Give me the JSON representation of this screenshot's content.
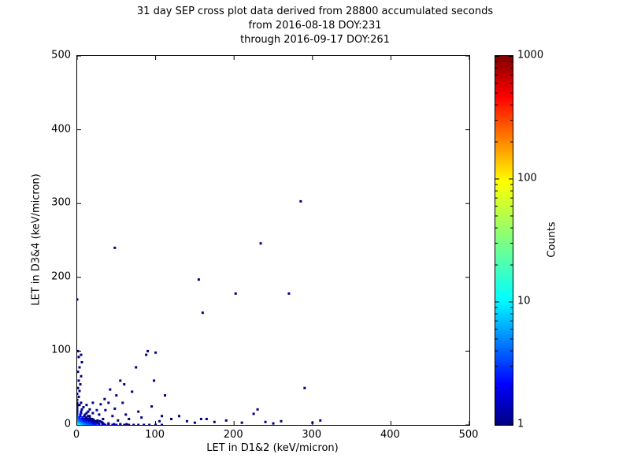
{
  "chart_data": {
    "type": "scatter",
    "title_lines": [
      "31 day SEP cross plot data derived from 28800 accumulated seconds",
      "from 2016-08-18 DOY:231",
      "through 2016-09-17 DOY:261"
    ],
    "xlabel": "LET in D1&2 (keV/micron)",
    "ylabel": "LET in D3&4 (keV/micron)",
    "xlim": [
      0,
      500
    ],
    "ylim": [
      0,
      500
    ],
    "xticks": [
      0,
      100,
      200,
      300,
      400,
      500
    ],
    "yticks": [
      0,
      100,
      200,
      300,
      400,
      500
    ],
    "grid": false,
    "legend": "none",
    "colorbar": {
      "label": "Counts",
      "scale": "log",
      "clim": [
        1,
        1000
      ],
      "ticks": [
        1,
        10,
        100,
        1000
      ],
      "colormap": "jet",
      "colormap_stops": [
        "#000080",
        "#0000ff",
        "#00ffff",
        "#80ff80",
        "#ffff00",
        "#ff0000",
        "#800000"
      ]
    },
    "points": [
      [
        0,
        0,
        30
      ],
      [
        1,
        0,
        26
      ],
      [
        2,
        0,
        22
      ],
      [
        3,
        0,
        18
      ],
      [
        4,
        0,
        15
      ],
      [
        5,
        0,
        13
      ],
      [
        6,
        0,
        11
      ],
      [
        8,
        0,
        9
      ],
      [
        10,
        0,
        8
      ],
      [
        12,
        0,
        7
      ],
      [
        15,
        0,
        6
      ],
      [
        18,
        0,
        5
      ],
      [
        21,
        0,
        4
      ],
      [
        24,
        0,
        4
      ],
      [
        28,
        0,
        3
      ],
      [
        32,
        0,
        3
      ],
      [
        36,
        0,
        2
      ],
      [
        40,
        0,
        2
      ],
      [
        45,
        0,
        2
      ],
      [
        50,
        0,
        2
      ],
      [
        55,
        0,
        1
      ],
      [
        60,
        0,
        1
      ],
      [
        66,
        0,
        1
      ],
      [
        72,
        0,
        1
      ],
      [
        78,
        0,
        1
      ],
      [
        85,
        0,
        1
      ],
      [
        92,
        0,
        1
      ],
      [
        100,
        0,
        1
      ],
      [
        108,
        0,
        1
      ],
      [
        0,
        1,
        22
      ],
      [
        1,
        1,
        20
      ],
      [
        2,
        1,
        16
      ],
      [
        3,
        1,
        13
      ],
      [
        5,
        1,
        11
      ],
      [
        7,
        1,
        9
      ],
      [
        9,
        1,
        7
      ],
      [
        12,
        1,
        6
      ],
      [
        15,
        1,
        5
      ],
      [
        19,
        1,
        4
      ],
      [
        23,
        1,
        3
      ],
      [
        28,
        1,
        2
      ],
      [
        34,
        1,
        2
      ],
      [
        40,
        1,
        1
      ],
      [
        47,
        1,
        1
      ],
      [
        55,
        1,
        1
      ],
      [
        63,
        1,
        1
      ],
      [
        0,
        2,
        16
      ],
      [
        1,
        2,
        14
      ],
      [
        2,
        2,
        12
      ],
      [
        4,
        2,
        10
      ],
      [
        6,
        2,
        8
      ],
      [
        8,
        2,
        6
      ],
      [
        11,
        2,
        5
      ],
      [
        14,
        2,
        4
      ],
      [
        18,
        2,
        3
      ],
      [
        22,
        2,
        2
      ],
      [
        27,
        2,
        2
      ],
      [
        33,
        2,
        1
      ],
      [
        40,
        2,
        1
      ],
      [
        0,
        3,
        13
      ],
      [
        1,
        3,
        11
      ],
      [
        3,
        3,
        9
      ],
      [
        5,
        3,
        7
      ],
      [
        7,
        3,
        6
      ],
      [
        10,
        3,
        5
      ],
      [
        13,
        3,
        4
      ],
      [
        17,
        3,
        3
      ],
      [
        21,
        3,
        2
      ],
      [
        26,
        3,
        1
      ],
      [
        32,
        3,
        1
      ],
      [
        0,
        4,
        11
      ],
      [
        2,
        4,
        9
      ],
      [
        4,
        4,
        7
      ],
      [
        6,
        4,
        6
      ],
      [
        9,
        4,
        4
      ],
      [
        12,
        4,
        3
      ],
      [
        16,
        4,
        3
      ],
      [
        20,
        4,
        2
      ],
      [
        25,
        4,
        1
      ],
      [
        31,
        4,
        1
      ],
      [
        0,
        5,
        9
      ],
      [
        2,
        5,
        7
      ],
      [
        4,
        5,
        6
      ],
      [
        7,
        5,
        4
      ],
      [
        10,
        5,
        3
      ],
      [
        14,
        5,
        3
      ],
      [
        18,
        5,
        2
      ],
      [
        23,
        5,
        1
      ],
      [
        29,
        5,
        1
      ],
      [
        0,
        6,
        8
      ],
      [
        2,
        6,
        6
      ],
      [
        5,
        6,
        4
      ],
      [
        8,
        6,
        3
      ],
      [
        11,
        6,
        3
      ],
      [
        15,
        6,
        2
      ],
      [
        20,
        6,
        1
      ],
      [
        26,
        6,
        1
      ],
      [
        0,
        7,
        7
      ],
      [
        2,
        7,
        5
      ],
      [
        5,
        7,
        4
      ],
      [
        8,
        7,
        3
      ],
      [
        12,
        7,
        2
      ],
      [
        16,
        7,
        1
      ],
      [
        21,
        7,
        1
      ],
      [
        0,
        8,
        6
      ],
      [
        3,
        8,
        4
      ],
      [
        6,
        8,
        3
      ],
      [
        10,
        8,
        2
      ],
      [
        14,
        8,
        1
      ],
      [
        19,
        8,
        1
      ],
      [
        0,
        9,
        5
      ],
      [
        3,
        9,
        4
      ],
      [
        7,
        9,
        2
      ],
      [
        11,
        9,
        1
      ],
      [
        16,
        9,
        1
      ],
      [
        0,
        10,
        5
      ],
      [
        3,
        10,
        3
      ],
      [
        7,
        10,
        2
      ],
      [
        12,
        10,
        1
      ],
      [
        0,
        12,
        4
      ],
      [
        4,
        12,
        2
      ],
      [
        9,
        12,
        1
      ],
      [
        14,
        12,
        1
      ],
      [
        0,
        14,
        3
      ],
      [
        4,
        14,
        2
      ],
      [
        10,
        14,
        1
      ],
      [
        0,
        16,
        3
      ],
      [
        5,
        16,
        2
      ],
      [
        12,
        16,
        1
      ],
      [
        0,
        18,
        2
      ],
      [
        5,
        18,
        1
      ],
      [
        14,
        18,
        1
      ],
      [
        0,
        21,
        2
      ],
      [
        6,
        21,
        1
      ],
      [
        16,
        21,
        1
      ],
      [
        0,
        24,
        2
      ],
      [
        8,
        24,
        1
      ],
      [
        0,
        27,
        1
      ],
      [
        3,
        27,
        1
      ],
      [
        12,
        27,
        1
      ],
      [
        0,
        30,
        1
      ],
      [
        5,
        30,
        1
      ],
      [
        20,
        30,
        1
      ],
      [
        0,
        34,
        1
      ],
      [
        2,
        38,
        1
      ],
      [
        0,
        42,
        1
      ],
      [
        3,
        46,
        1
      ],
      [
        1,
        50,
        1
      ],
      [
        4,
        55,
        1
      ],
      [
        2,
        60,
        1
      ],
      [
        5,
        66,
        1
      ],
      [
        1,
        72,
        1
      ],
      [
        3,
        78,
        1
      ],
      [
        6,
        85,
        1
      ],
      [
        2,
        92,
        1
      ],
      [
        5,
        95,
        1
      ],
      [
        1,
        100,
        1
      ],
      [
        0,
        170,
        1
      ],
      [
        16,
        12,
        1
      ],
      [
        20,
        16,
        1
      ],
      [
        25,
        20,
        2
      ],
      [
        28,
        14,
        1
      ],
      [
        33,
        8,
        1
      ],
      [
        36,
        20,
        1
      ],
      [
        30,
        28,
        1
      ],
      [
        35,
        35,
        1
      ],
      [
        40,
        30,
        1
      ],
      [
        42,
        48,
        1
      ],
      [
        45,
        12,
        1
      ],
      [
        48,
        22,
        1
      ],
      [
        50,
        40,
        1
      ],
      [
        52,
        6,
        1
      ],
      [
        55,
        60,
        1
      ],
      [
        58,
        30,
        1
      ],
      [
        60,
        55,
        1
      ],
      [
        62,
        14,
        1
      ],
      [
        66,
        8,
        1
      ],
      [
        70,
        45,
        1
      ],
      [
        75,
        78,
        1
      ],
      [
        78,
        18,
        1
      ],
      [
        82,
        10,
        1
      ],
      [
        88,
        95,
        1
      ],
      [
        90,
        100,
        1
      ],
      [
        95,
        25,
        1
      ],
      [
        98,
        60,
        1
      ],
      [
        100,
        98,
        1
      ],
      [
        105,
        5,
        1
      ],
      [
        108,
        12,
        1
      ],
      [
        112,
        40,
        1
      ],
      [
        120,
        8,
        1
      ],
      [
        130,
        12,
        1
      ],
      [
        140,
        5,
        1
      ],
      [
        150,
        3,
        1
      ],
      [
        158,
        8,
        1
      ],
      [
        165,
        8,
        1
      ],
      [
        175,
        4,
        1
      ],
      [
        190,
        6,
        1
      ],
      [
        210,
        3,
        1
      ],
      [
        225,
        15,
        1
      ],
      [
        240,
        4,
        1
      ],
      [
        250,
        2,
        1
      ],
      [
        260,
        5,
        1
      ],
      [
        300,
        3,
        1
      ],
      [
        310,
        6,
        1
      ],
      [
        160,
        152,
        1
      ],
      [
        155,
        197,
        1
      ],
      [
        202,
        178,
        1
      ],
      [
        270,
        178,
        1
      ],
      [
        285,
        303,
        1
      ],
      [
        48,
        240,
        1
      ],
      [
        234,
        246,
        1
      ],
      [
        230,
        21,
        1
      ],
      [
        290,
        50,
        1
      ]
    ]
  }
}
